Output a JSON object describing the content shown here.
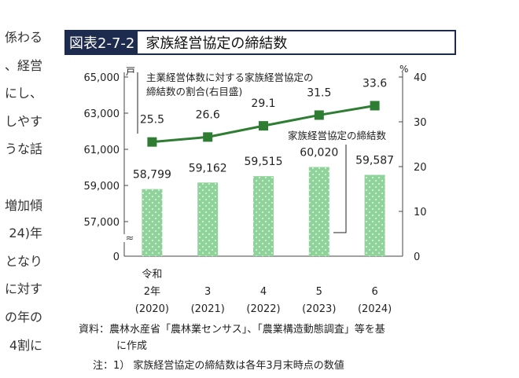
{
  "bg_text_lines": [
    "係わる",
    "、経営",
    "にし、",
    "しやす",
    "うな話",
    "",
    "増加傾",
    "24)年",
    "となり",
    "に対す",
    "の年の",
    "4割に"
  ],
  "figure_number": "図表2-7-2",
  "figure_title": "家族経営協定の締結数",
  "notes": {
    "source_label": "資料：",
    "source_line1": "農林水産省「農林業センサス」、「農業構造動態調査」等を基",
    "source_line2": "に作成",
    "note_label": "注：1）",
    "note_text": "家族経営協定の締結数は各年3月末時点の数値"
  },
  "colors": {
    "bar_fill": "#8fd39b",
    "line": "#2e7d32",
    "marker": "#2e7d32",
    "axis": "#444444",
    "title_bg": "#1d2b4e"
  },
  "chart_data": {
    "type": "bar+line",
    "categories": [
      "令和\n2年\n(2020)",
      "3\n(2021)",
      "4\n(2022)",
      "5\n(2023)",
      "6\n(2024)"
    ],
    "category_lines": [
      [
        "令和",
        "2年",
        "(2020)"
      ],
      [
        "",
        "3",
        "(2021)"
      ],
      [
        "",
        "4",
        "(2022)"
      ],
      [
        "",
        "5",
        "(2023)"
      ],
      [
        "",
        "6",
        "(2024)"
      ]
    ],
    "series": [
      {
        "name": "家族経営協定の締結数",
        "type": "bar",
        "axis": "left",
        "values": [
          58799,
          59162,
          59515,
          60020,
          59587
        ],
        "labels": [
          "58,799",
          "59,162",
          "59,515",
          "60,020",
          "59,587"
        ]
      },
      {
        "name": "主業経営体数に対する家族経営協定の締結数の割合(右目盛)",
        "type": "line",
        "axis": "right",
        "values": [
          25.5,
          26.6,
          29.1,
          31.5,
          33.6
        ],
        "labels": [
          "25.5",
          "26.6",
          "29.1",
          "31.5",
          "33.6"
        ]
      }
    ],
    "left_axis": {
      "unit": "戸",
      "ticks": [
        0,
        57000,
        59000,
        61000,
        63000,
        65000
      ],
      "tick_labels": [
        "0",
        "57,000",
        "59,000",
        "61,000",
        "63,000",
        "65,000"
      ],
      "break": true,
      "break_symbol": "≈",
      "range": [
        56000,
        65000
      ]
    },
    "right_axis": {
      "unit": "%",
      "ticks": [
        0,
        10,
        20,
        30,
        40
      ],
      "tick_labels": [
        "0",
        "10",
        "20",
        "30",
        "40"
      ],
      "range": [
        0,
        40
      ]
    },
    "annotations": {
      "line_label_1": "主業経営体数に対する家族経営協定の",
      "line_label_2": "締結数の割合(右目盛)",
      "bar_label": "家族経営協定の締結数"
    },
    "grid": false,
    "legend": "inline-annotations"
  }
}
